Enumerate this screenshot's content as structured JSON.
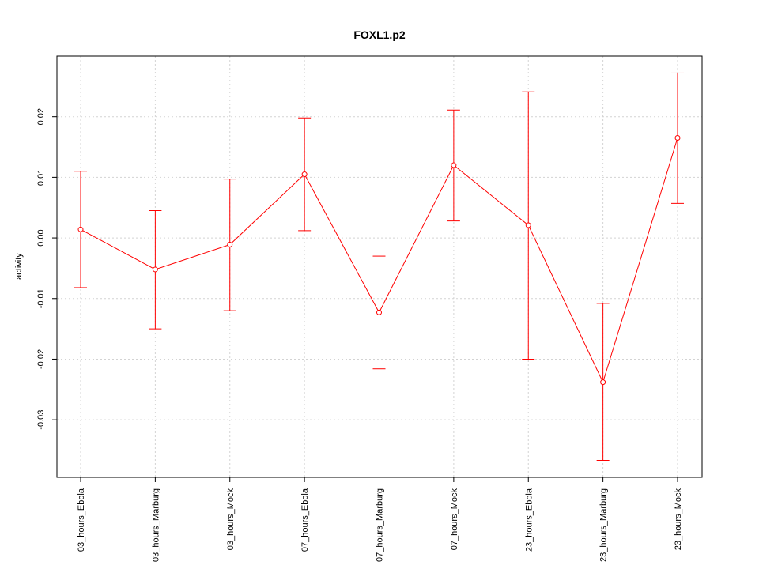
{
  "chart_data": {
    "type": "line",
    "title": "FOXL1.p2",
    "xlabel": "",
    "ylabel": "activity",
    "categories": [
      "03_hours_Ebola",
      "03_hours_Marburg",
      "03_hours_Mock",
      "07_hours_Ebola",
      "07_hours_Marburg",
      "07_hours_Mock",
      "23_hours_Ebola",
      "23_hours_Marburg",
      "23_hours_Mock"
    ],
    "values": [
      0.0014,
      -0.0052,
      -0.0011,
      0.0105,
      -0.0123,
      0.012,
      0.0021,
      -0.0238,
      0.0165
    ],
    "error_upper": [
      0.011,
      0.0045,
      0.0097,
      0.0198,
      -0.003,
      0.0211,
      0.0241,
      -0.0108,
      0.0272
    ],
    "error_lower": [
      -0.0082,
      -0.015,
      -0.012,
      0.0012,
      -0.0216,
      0.0028,
      -0.02,
      -0.0367,
      0.0057
    ],
    "ylim": [
      -0.0395,
      0.03
    ],
    "yticks": [
      -0.03,
      -0.02,
      -0.01,
      0.0,
      0.01,
      0.02
    ],
    "ytick_labels": [
      "-0.03",
      "-0.02",
      "-0.01",
      "0.00",
      "0.01",
      "0.02"
    ],
    "grid": true,
    "color": "#ff0000",
    "grid_color": "#d3d3d3"
  }
}
